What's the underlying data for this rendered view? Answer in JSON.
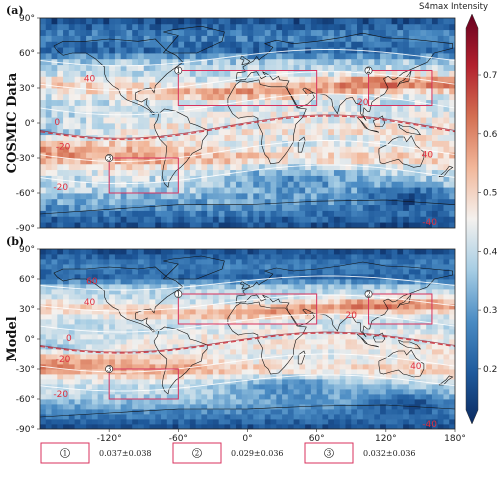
{
  "chart_data": {
    "type": "heatmap",
    "colorbar": {
      "title": "S4max Intensity",
      "ticks": [
        0.2,
        0.3,
        0.4,
        0.5,
        0.6,
        0.7
      ],
      "range": [
        0.13,
        0.78
      ],
      "colors": [
        "#0b2a60",
        "#1f5a9c",
        "#4a8bc3",
        "#a6cde4",
        "#f4f1ee",
        "#f2b79a",
        "#d36f52",
        "#b2212e",
        "#67001f"
      ]
    },
    "x_ticks": [
      "-120°",
      "-60°",
      "0°",
      "60°",
      "120°",
      "180°"
    ],
    "y_ticks": [
      "90°",
      "60°",
      "30°",
      "0°",
      "-30°",
      "-60°",
      "-90°"
    ],
    "xlim": [
      -180,
      180
    ],
    "ylim": [
      -90,
      90
    ],
    "panels": [
      {
        "label": "(a)",
        "ylabel": "COSMIC Data",
        "contour_labels": [
          {
            "text": "40",
            "lon": -137,
            "lat": 38
          },
          {
            "text": "20",
            "lon": 100,
            "lat": 18
          },
          {
            "text": "0",
            "lon": -165,
            "lat": 1
          },
          {
            "text": "-20",
            "lon": -160,
            "lat": -20
          },
          {
            "text": "40",
            "lon": 156,
            "lat": -27
          },
          {
            "text": "-20",
            "lon": -162,
            "lat": -55
          },
          {
            "text": "-40",
            "lon": 158,
            "lat": -85
          }
        ],
        "boxes": [
          {
            "id": "1",
            "lon": [
              -60,
              60
            ],
            "lat": [
              15,
              45
            ]
          },
          {
            "id": "2",
            "lon": [
              105,
              160
            ],
            "lat": [
              15,
              45
            ]
          },
          {
            "id": "3",
            "lon": [
              -120,
              -60
            ],
            "lat": [
              -60,
              -30
            ]
          }
        ]
      },
      {
        "label": "(b)",
        "ylabel": "Model",
        "contour_labels": [
          {
            "text": "60",
            "lon": -135,
            "lat": 58
          },
          {
            "text": "40",
            "lon": -137,
            "lat": 37
          },
          {
            "text": "20",
            "lon": 90,
            "lat": 24
          },
          {
            "text": "0",
            "lon": -155,
            "lat": 1
          },
          {
            "text": "-20",
            "lon": -160,
            "lat": -20
          },
          {
            "text": "40",
            "lon": 146,
            "lat": -27
          },
          {
            "text": "-20",
            "lon": -162,
            "lat": -55
          },
          {
            "text": "-40",
            "lon": 158,
            "lat": -85
          }
        ],
        "boxes": [
          {
            "id": "1",
            "lon": [
              -60,
              60
            ],
            "lat": [
              15,
              45
            ]
          },
          {
            "id": "2",
            "lon": [
              105,
              160
            ],
            "lat": [
              15,
              45
            ]
          },
          {
            "id": "3",
            "lon": [
              -120,
              -60
            ],
            "lat": [
              -60,
              -30
            ]
          }
        ]
      }
    ],
    "legend": [
      {
        "id": "1",
        "text": "0.037±0.038"
      },
      {
        "id": "2",
        "text": "0.029±0.036"
      },
      {
        "id": "3",
        "text": "0.032±0.036"
      }
    ]
  }
}
